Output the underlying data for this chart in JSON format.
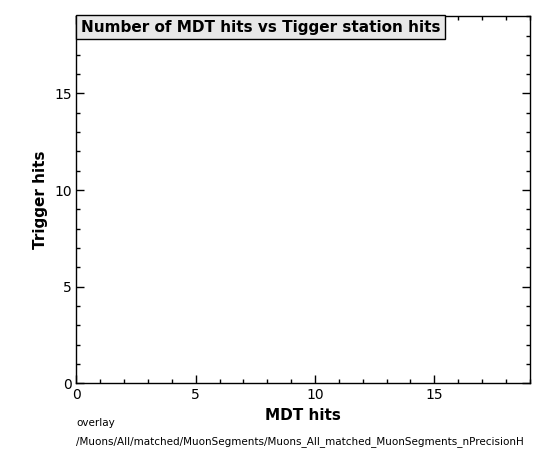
{
  "title": "Number of MDT hits vs Tigger station hits",
  "xlabel": "MDT hits",
  "ylabel": "Trigger hits",
  "xlim": [
    0,
    19
  ],
  "ylim": [
    0,
    19
  ],
  "xticks": [
    0,
    5,
    10,
    15
  ],
  "yticks": [
    0,
    5,
    10,
    15
  ],
  "x_minor_ticks": 1,
  "y_minor_ticks": 1,
  "background_color": "#ffffff",
  "plot_bg_color": "#ffffff",
  "footer_line1": "overlay",
  "footer_line2": "/Muons/All/matched/MuonSegments/Muons_All_matched_MuonSegments_nPrecisionH",
  "title_fontsize": 11,
  "axis_label_fontsize": 11,
  "tick_label_fontsize": 10,
  "footer_fontsize": 7.5,
  "legend_box_facecolor": "#e8e8e8",
  "legend_box_edge": "#000000"
}
